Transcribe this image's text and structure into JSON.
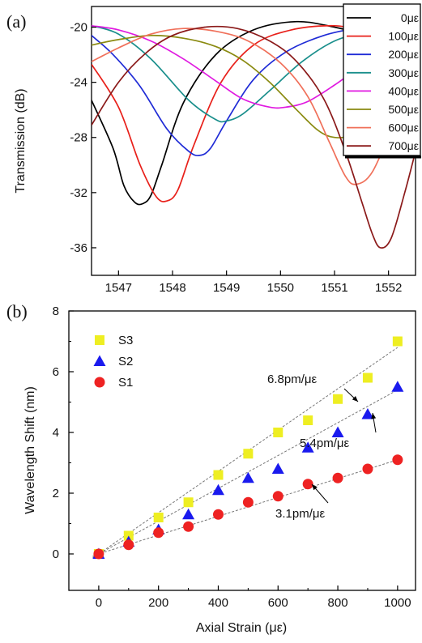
{
  "chart_data": [
    {
      "panel_label": "(a)",
      "type": "line",
      "xlabel": "",
      "ylabel": "Transmission (dB)",
      "xlim": [
        1546.5,
        1552.5
      ],
      "ylim": [
        -38,
        -18.5
      ],
      "xticks": [
        1547,
        1548,
        1549,
        1550,
        1551,
        1552
      ],
      "yticks": [
        -20,
        -24,
        -28,
        -32,
        -36
      ],
      "legend_position": "top-right",
      "series": [
        {
          "name": "0με",
          "color": "#000000",
          "x": [
            1546.5,
            1546.9,
            1547.1,
            1547.3,
            1547.45,
            1547.6,
            1547.8,
            1548.2,
            1548.8,
            1549.5,
            1550.3,
            1551.0,
            1551.5
          ],
          "y": [
            -25.3,
            -28.8,
            -31.5,
            -32.7,
            -32.8,
            -32.2,
            -30.0,
            -25.5,
            -22.0,
            -20.2,
            -19.6,
            -20.0,
            -20.5
          ]
        },
        {
          "name": "100με",
          "color": "#e8201a",
          "x": [
            1546.5,
            1547.0,
            1547.4,
            1547.7,
            1547.9,
            1548.1,
            1548.4,
            1548.9,
            1549.5,
            1550.2,
            1551.0,
            1551.6
          ],
          "y": [
            -22.7,
            -25.8,
            -30.0,
            -32.3,
            -32.6,
            -31.8,
            -28.5,
            -24.0,
            -21.3,
            -20.2,
            -19.9,
            -20.3
          ]
        },
        {
          "name": "200με",
          "color": "#1f2bd6",
          "x": [
            1546.5,
            1546.9,
            1547.4,
            1547.9,
            1548.3,
            1548.5,
            1548.7,
            1549.0,
            1549.5,
            1550.1,
            1550.8,
            1551.5
          ],
          "y": [
            -20.6,
            -22.0,
            -24.3,
            -27.4,
            -29.0,
            -29.3,
            -28.8,
            -26.8,
            -23.8,
            -21.8,
            -20.6,
            -20.0
          ]
        },
        {
          "name": "300με",
          "color": "#1a8f8c",
          "x": [
            1546.5,
            1547.0,
            1547.6,
            1548.3,
            1548.8,
            1549.0,
            1549.3,
            1549.8,
            1550.4,
            1551.0,
            1551.6
          ],
          "y": [
            -19.9,
            -20.5,
            -22.3,
            -25.3,
            -26.7,
            -26.8,
            -26.3,
            -24.6,
            -22.5,
            -21.0,
            -20.3
          ]
        },
        {
          "name": "400με",
          "color": "#e01ae0",
          "x": [
            1546.5,
            1547.0,
            1547.6,
            1548.2,
            1548.8,
            1549.3,
            1549.8,
            1550.1,
            1550.5,
            1551.0,
            1551.5,
            1552.0
          ],
          "y": [
            -19.9,
            -20.2,
            -21.0,
            -22.3,
            -23.9,
            -25.2,
            -25.8,
            -25.8,
            -25.4,
            -24.2,
            -22.8,
            -21.6
          ]
        },
        {
          "name": "500με",
          "color": "#8a8a10",
          "x": [
            1546.5,
            1547.0,
            1547.6,
            1548.2,
            1548.8,
            1549.3,
            1549.8,
            1550.3,
            1550.7,
            1551.0,
            1551.3,
            1551.6,
            1552.0
          ],
          "y": [
            -21.3,
            -20.9,
            -20.6,
            -20.8,
            -21.4,
            -22.4,
            -24.0,
            -26.0,
            -27.5,
            -28.0,
            -27.8,
            -26.6,
            -24.5
          ]
        },
        {
          "name": "600με",
          "color": "#f0705a",
          "x": [
            1546.5,
            1547.0,
            1547.6,
            1548.2,
            1548.8,
            1549.4,
            1550.0,
            1550.5,
            1550.9,
            1551.2,
            1551.4,
            1551.7,
            1552.1
          ],
          "y": [
            -22.5,
            -21.5,
            -20.5,
            -20.1,
            -20.3,
            -21.0,
            -22.6,
            -25.0,
            -28.3,
            -30.8,
            -31.4,
            -30.5,
            -27.0
          ]
        },
        {
          "name": "700με",
          "color": "#8b1a1a",
          "x": [
            1546.5,
            1547.0,
            1547.5,
            1548.0,
            1548.6,
            1549.2,
            1549.8,
            1550.3,
            1550.8,
            1551.2,
            1551.5,
            1551.7,
            1551.85,
            1552.05,
            1552.3,
            1552.5
          ],
          "y": [
            -27.1,
            -24.0,
            -21.9,
            -20.6,
            -20.0,
            -20.1,
            -21.0,
            -22.5,
            -25.2,
            -29.0,
            -32.6,
            -35.0,
            -36.0,
            -35.3,
            -32.0,
            -29.0
          ]
        }
      ]
    },
    {
      "panel_label": "(b)",
      "type": "scatter",
      "xlabel": "Axial Strain (με)",
      "ylabel": "Wavelength Shift (nm)",
      "xlim": [
        -100,
        1060
      ],
      "ylim": [
        -1.2,
        8
      ],
      "xticks": [
        0,
        200,
        400,
        600,
        800,
        1000
      ],
      "yticks": [
        0,
        2,
        4,
        6,
        8
      ],
      "legend_position": "top-left",
      "x": [
        0,
        100,
        200,
        300,
        400,
        500,
        600,
        700,
        800,
        900,
        1000
      ],
      "series": [
        {
          "name": "S3",
          "marker": "square",
          "color": "#eeee22",
          "values": [
            0.0,
            0.6,
            1.2,
            1.7,
            2.6,
            3.3,
            4.0,
            4.4,
            5.1,
            5.8,
            7.0
          ],
          "fit_slope": 0.0068,
          "fit_label": "6.8pm/με"
        },
        {
          "name": "S2",
          "marker": "triangle",
          "color": "#1a1aee",
          "values": [
            0.0,
            0.4,
            0.8,
            1.3,
            2.1,
            2.5,
            2.8,
            3.5,
            4.0,
            4.6,
            5.5
          ],
          "fit_slope": 0.0054,
          "fit_label": "5.4pm/με"
        },
        {
          "name": "S1",
          "marker": "circle",
          "color": "#ee2222",
          "values": [
            0.0,
            0.3,
            0.7,
            0.9,
            1.3,
            1.7,
            1.9,
            2.3,
            2.5,
            2.8,
            3.1
          ],
          "fit_slope": 0.0031,
          "fit_label": "3.1pm/με"
        }
      ]
    }
  ]
}
